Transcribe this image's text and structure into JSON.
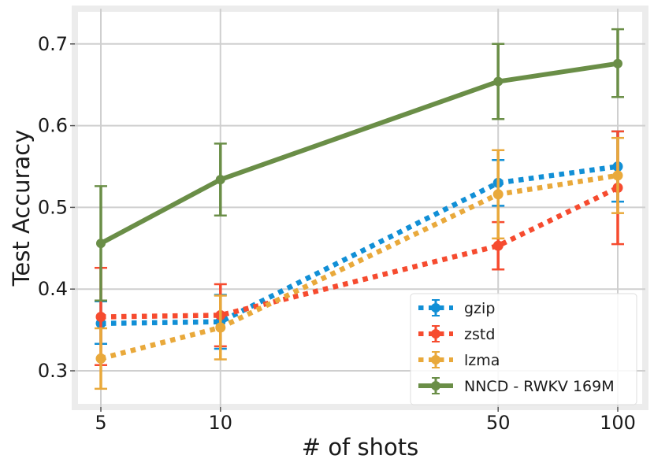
{
  "chart_data": {
    "type": "line",
    "title": "",
    "xlabel": "# of shots",
    "ylabel": "Test Accuracy",
    "x_scale": "log",
    "x": [
      5,
      10,
      50,
      100
    ],
    "x_ticks": [
      "5",
      "10",
      "50",
      "100"
    ],
    "y_ticks": [
      "0.3",
      "0.4",
      "0.5",
      "0.6",
      "0.7"
    ],
    "ylim": [
      0.26,
      0.745
    ],
    "grid": true,
    "legend_position": "bottom-right",
    "series": [
      {
        "name": "gzip",
        "color": "#118fd6",
        "style": "dotted",
        "values": [
          0.358,
          0.36,
          0.53,
          0.55
        ],
        "err_low": [
          0.333,
          0.327,
          0.502,
          0.507
        ],
        "err_high": [
          0.385,
          0.393,
          0.558,
          0.593
        ]
      },
      {
        "name": "zstd",
        "color": "#f64b2f",
        "style": "dotted",
        "values": [
          0.366,
          0.368,
          0.453,
          0.524
        ],
        "err_low": [
          0.307,
          0.33,
          0.424,
          0.455
        ],
        "err_high": [
          0.426,
          0.406,
          0.482,
          0.593
        ]
      },
      {
        "name": "lzma",
        "color": "#e9a93b",
        "style": "dotted",
        "values": [
          0.315,
          0.353,
          0.516,
          0.539
        ],
        "err_low": [
          0.278,
          0.314,
          0.462,
          0.493
        ],
        "err_high": [
          0.352,
          0.392,
          0.57,
          0.585
        ]
      },
      {
        "name": "NNCD - RWKV 169M",
        "color": "#6a8e47",
        "style": "solid",
        "values": [
          0.456,
          0.534,
          0.654,
          0.676
        ],
        "err_low": [
          0.386,
          0.49,
          0.608,
          0.635
        ],
        "err_high": [
          0.526,
          0.578,
          0.7,
          0.718
        ]
      }
    ]
  }
}
